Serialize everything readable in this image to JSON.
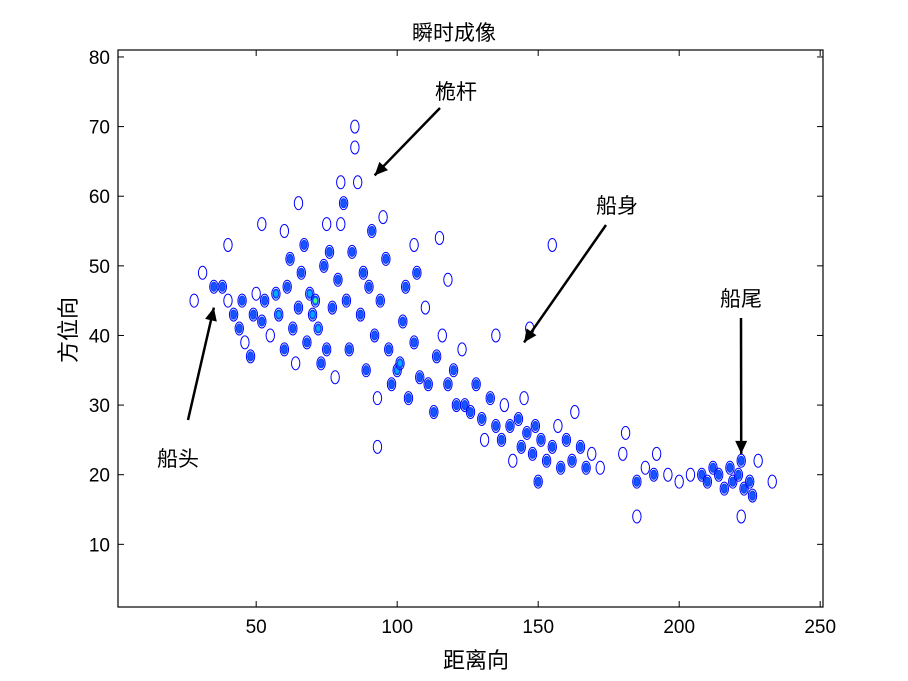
{
  "chart_data": {
    "type": "contour",
    "title": "瞬时成像",
    "xlabel": "距离向",
    "ylabel": "方位向",
    "xlim": [
      1,
      251
    ],
    "ylim": [
      1,
      81
    ],
    "xticks": [
      50,
      100,
      150,
      200,
      250
    ],
    "yticks": [
      10,
      20,
      30,
      40,
      50,
      60,
      70,
      80
    ],
    "grid": false,
    "colors": {
      "low": "#0000ff",
      "mid": "#0040ff",
      "high": "#00b0ff",
      "peak": "#40ff80",
      "axis": "#000000"
    },
    "annotations": [
      {
        "text": "桅杆",
        "points_to": [
          92,
          63
        ]
      },
      {
        "text": "船身",
        "points_to": [
          145,
          39
        ]
      },
      {
        "text": "船尾",
        "points_to": [
          222,
          23
        ]
      },
      {
        "text": "船头",
        "points_to": [
          35,
          44
        ]
      }
    ],
    "scatterers": [
      {
        "x": 28,
        "y": 45,
        "v": 1
      },
      {
        "x": 31,
        "y": 49,
        "v": 1
      },
      {
        "x": 35,
        "y": 47,
        "v": 2
      },
      {
        "x": 38,
        "y": 47,
        "v": 2
      },
      {
        "x": 40,
        "y": 45,
        "v": 1
      },
      {
        "x": 42,
        "y": 43,
        "v": 2
      },
      {
        "x": 44,
        "y": 41,
        "v": 2
      },
      {
        "x": 45,
        "y": 45,
        "v": 2
      },
      {
        "x": 46,
        "y": 39,
        "v": 1
      },
      {
        "x": 48,
        "y": 37,
        "v": 2
      },
      {
        "x": 49,
        "y": 43,
        "v": 2
      },
      {
        "x": 50,
        "y": 46,
        "v": 1
      },
      {
        "x": 52,
        "y": 42,
        "v": 2
      },
      {
        "x": 53,
        "y": 45,
        "v": 2
      },
      {
        "x": 55,
        "y": 40,
        "v": 1
      },
      {
        "x": 57,
        "y": 46,
        "v": 3
      },
      {
        "x": 58,
        "y": 43,
        "v": 3
      },
      {
        "x": 60,
        "y": 38,
        "v": 2
      },
      {
        "x": 61,
        "y": 47,
        "v": 2
      },
      {
        "x": 62,
        "y": 51,
        "v": 2
      },
      {
        "x": 63,
        "y": 41,
        "v": 2
      },
      {
        "x": 64,
        "y": 36,
        "v": 1
      },
      {
        "x": 65,
        "y": 44,
        "v": 2
      },
      {
        "x": 66,
        "y": 49,
        "v": 2
      },
      {
        "x": 67,
        "y": 53,
        "v": 2
      },
      {
        "x": 68,
        "y": 39,
        "v": 2
      },
      {
        "x": 69,
        "y": 46,
        "v": 3
      },
      {
        "x": 70,
        "y": 43,
        "v": 3
      },
      {
        "x": 71,
        "y": 45,
        "v": 4
      },
      {
        "x": 72,
        "y": 41,
        "v": 3
      },
      {
        "x": 73,
        "y": 36,
        "v": 2
      },
      {
        "x": 74,
        "y": 50,
        "v": 2
      },
      {
        "x": 75,
        "y": 38,
        "v": 2
      },
      {
        "x": 76,
        "y": 52,
        "v": 2
      },
      {
        "x": 77,
        "y": 44,
        "v": 2
      },
      {
        "x": 78,
        "y": 34,
        "v": 1
      },
      {
        "x": 79,
        "y": 48,
        "v": 2
      },
      {
        "x": 80,
        "y": 56,
        "v": 1
      },
      {
        "x": 81,
        "y": 59,
        "v": 2
      },
      {
        "x": 82,
        "y": 45,
        "v": 2
      },
      {
        "x": 83,
        "y": 38,
        "v": 2
      },
      {
        "x": 84,
        "y": 52,
        "v": 2
      },
      {
        "x": 85,
        "y": 67,
        "v": 1
      },
      {
        "x": 85,
        "y": 70,
        "v": 1
      },
      {
        "x": 86,
        "y": 62,
        "v": 1
      },
      {
        "x": 87,
        "y": 43,
        "v": 2
      },
      {
        "x": 88,
        "y": 49,
        "v": 2
      },
      {
        "x": 89,
        "y": 35,
        "v": 2
      },
      {
        "x": 90,
        "y": 47,
        "v": 2
      },
      {
        "x": 91,
        "y": 55,
        "v": 2
      },
      {
        "x": 92,
        "y": 40,
        "v": 2
      },
      {
        "x": 93,
        "y": 31,
        "v": 1
      },
      {
        "x": 94,
        "y": 45,
        "v": 2
      },
      {
        "x": 96,
        "y": 51,
        "v": 2
      },
      {
        "x": 97,
        "y": 38,
        "v": 2
      },
      {
        "x": 98,
        "y": 33,
        "v": 2
      },
      {
        "x": 100,
        "y": 35,
        "v": 3
      },
      {
        "x": 101,
        "y": 36,
        "v": 3
      },
      {
        "x": 102,
        "y": 42,
        "v": 2
      },
      {
        "x": 103,
        "y": 47,
        "v": 2
      },
      {
        "x": 104,
        "y": 31,
        "v": 2
      },
      {
        "x": 106,
        "y": 39,
        "v": 2
      },
      {
        "x": 107,
        "y": 49,
        "v": 2
      },
      {
        "x": 108,
        "y": 34,
        "v": 2
      },
      {
        "x": 110,
        "y": 44,
        "v": 1
      },
      {
        "x": 111,
        "y": 33,
        "v": 2
      },
      {
        "x": 113,
        "y": 29,
        "v": 2
      },
      {
        "x": 114,
        "y": 37,
        "v": 2
      },
      {
        "x": 116,
        "y": 40,
        "v": 1
      },
      {
        "x": 118,
        "y": 33,
        "v": 2
      },
      {
        "x": 120,
        "y": 35,
        "v": 2
      },
      {
        "x": 121,
        "y": 30,
        "v": 2
      },
      {
        "x": 123,
        "y": 38,
        "v": 1
      },
      {
        "x": 124,
        "y": 30,
        "v": 2
      },
      {
        "x": 126,
        "y": 29,
        "v": 2
      },
      {
        "x": 128,
        "y": 33,
        "v": 2
      },
      {
        "x": 130,
        "y": 28,
        "v": 2
      },
      {
        "x": 131,
        "y": 25,
        "v": 1
      },
      {
        "x": 133,
        "y": 31,
        "v": 2
      },
      {
        "x": 135,
        "y": 27,
        "v": 2
      },
      {
        "x": 137,
        "y": 25,
        "v": 2
      },
      {
        "x": 138,
        "y": 30,
        "v": 1
      },
      {
        "x": 140,
        "y": 27,
        "v": 2
      },
      {
        "x": 141,
        "y": 22,
        "v": 1
      },
      {
        "x": 143,
        "y": 28,
        "v": 2
      },
      {
        "x": 144,
        "y": 24,
        "v": 2
      },
      {
        "x": 145,
        "y": 31,
        "v": 1
      },
      {
        "x": 146,
        "y": 26,
        "v": 2
      },
      {
        "x": 148,
        "y": 23,
        "v": 2
      },
      {
        "x": 149,
        "y": 27,
        "v": 2
      },
      {
        "x": 150,
        "y": 19,
        "v": 2
      },
      {
        "x": 151,
        "y": 25,
        "v": 2
      },
      {
        "x": 153,
        "y": 22,
        "v": 2
      },
      {
        "x": 155,
        "y": 24,
        "v": 2
      },
      {
        "x": 157,
        "y": 27,
        "v": 1
      },
      {
        "x": 158,
        "y": 21,
        "v": 2
      },
      {
        "x": 160,
        "y": 25,
        "v": 2
      },
      {
        "x": 162,
        "y": 22,
        "v": 2
      },
      {
        "x": 163,
        "y": 29,
        "v": 1
      },
      {
        "x": 165,
        "y": 24,
        "v": 2
      },
      {
        "x": 167,
        "y": 21,
        "v": 2
      },
      {
        "x": 169,
        "y": 23,
        "v": 1
      },
      {
        "x": 172,
        "y": 21,
        "v": 1
      },
      {
        "x": 181,
        "y": 26,
        "v": 1
      },
      {
        "x": 185,
        "y": 19,
        "v": 2
      },
      {
        "x": 188,
        "y": 21,
        "v": 1
      },
      {
        "x": 191,
        "y": 20,
        "v": 2
      },
      {
        "x": 192,
        "y": 23,
        "v": 1
      },
      {
        "x": 196,
        "y": 20,
        "v": 1
      },
      {
        "x": 200,
        "y": 19,
        "v": 1
      },
      {
        "x": 204,
        "y": 20,
        "v": 1
      },
      {
        "x": 208,
        "y": 20,
        "v": 2
      },
      {
        "x": 210,
        "y": 19,
        "v": 2
      },
      {
        "x": 212,
        "y": 21,
        "v": 2
      },
      {
        "x": 214,
        "y": 20,
        "v": 2
      },
      {
        "x": 216,
        "y": 18,
        "v": 2
      },
      {
        "x": 218,
        "y": 21,
        "v": 2
      },
      {
        "x": 219,
        "y": 19,
        "v": 2
      },
      {
        "x": 221,
        "y": 20,
        "v": 2
      },
      {
        "x": 222,
        "y": 22,
        "v": 2
      },
      {
        "x": 223,
        "y": 18,
        "v": 2
      },
      {
        "x": 225,
        "y": 19,
        "v": 2
      },
      {
        "x": 226,
        "y": 17,
        "v": 2
      },
      {
        "x": 228,
        "y": 22,
        "v": 1
      },
      {
        "x": 233,
        "y": 19,
        "v": 1
      },
      {
        "x": 185,
        "y": 14,
        "v": 1
      },
      {
        "x": 222,
        "y": 14,
        "v": 1
      },
      {
        "x": 93,
        "y": 24,
        "v": 1
      },
      {
        "x": 52,
        "y": 56,
        "v": 1
      },
      {
        "x": 60,
        "y": 55,
        "v": 1
      },
      {
        "x": 75,
        "y": 56,
        "v": 1
      },
      {
        "x": 115,
        "y": 54,
        "v": 1
      },
      {
        "x": 155,
        "y": 53,
        "v": 1
      },
      {
        "x": 118,
        "y": 48,
        "v": 1
      },
      {
        "x": 135,
        "y": 40,
        "v": 1
      },
      {
        "x": 40,
        "y": 53,
        "v": 1
      },
      {
        "x": 65,
        "y": 59,
        "v": 1
      },
      {
        "x": 80,
        "y": 62,
        "v": 1
      },
      {
        "x": 95,
        "y": 57,
        "v": 1
      },
      {
        "x": 106,
        "y": 53,
        "v": 1
      },
      {
        "x": 147,
        "y": 41,
        "v": 1
      },
      {
        "x": 180,
        "y": 23,
        "v": 1
      }
    ]
  }
}
